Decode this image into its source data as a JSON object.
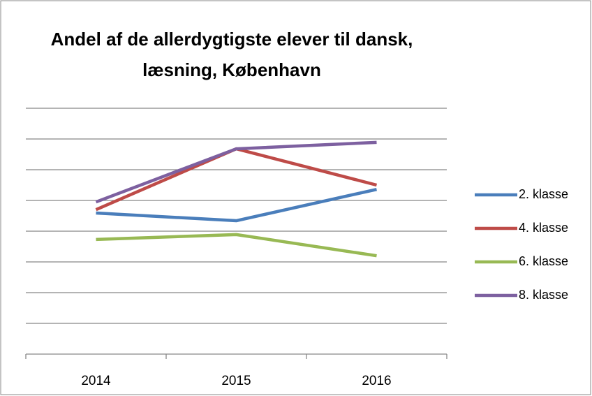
{
  "chart_data": {
    "type": "line",
    "title": [
      "Andel af de allerdygtigste elever til dansk,",
      "læsning, København"
    ],
    "categories": [
      "2014",
      "2015",
      "2016"
    ],
    "series": [
      {
        "name": "2. klasse",
        "color": "#4a7ebb",
        "values": [
          4.59,
          4.34,
          5.36
        ]
      },
      {
        "name": "4. klasse",
        "color": "#be4b48",
        "values": [
          4.7,
          6.68,
          5.5
        ]
      },
      {
        "name": "6. klasse",
        "color": "#98b954",
        "values": [
          3.73,
          3.89,
          3.2
        ]
      },
      {
        "name": "8. klasse",
        "color": "#7d60a0",
        "values": [
          4.95,
          6.68,
          6.89
        ]
      }
    ],
    "ylim": [
      0,
      8
    ],
    "yticks": [
      0,
      1,
      2,
      3,
      4,
      5,
      6,
      7,
      8
    ],
    "grid": true,
    "legend": "right"
  }
}
